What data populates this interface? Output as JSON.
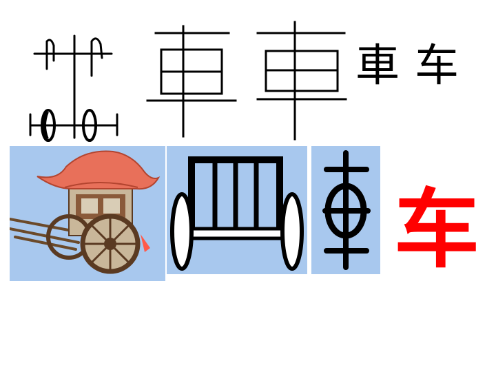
{
  "slide": {
    "evolution_row": {
      "standard_traditional": "車",
      "standard_simplified": "车"
    },
    "panels": {
      "carriage_illustration": "ancient-carriage-illustration",
      "pictograph": "carriage-pictograph",
      "bronze_script": "bronze-script-glyph"
    },
    "highlight_character": "车",
    "colors": {
      "panel_background": "#a8c8ee",
      "highlight": "#ff0000",
      "ink": "#000000",
      "canopy": "#e8705a",
      "wheel": "#5a3a22"
    }
  }
}
